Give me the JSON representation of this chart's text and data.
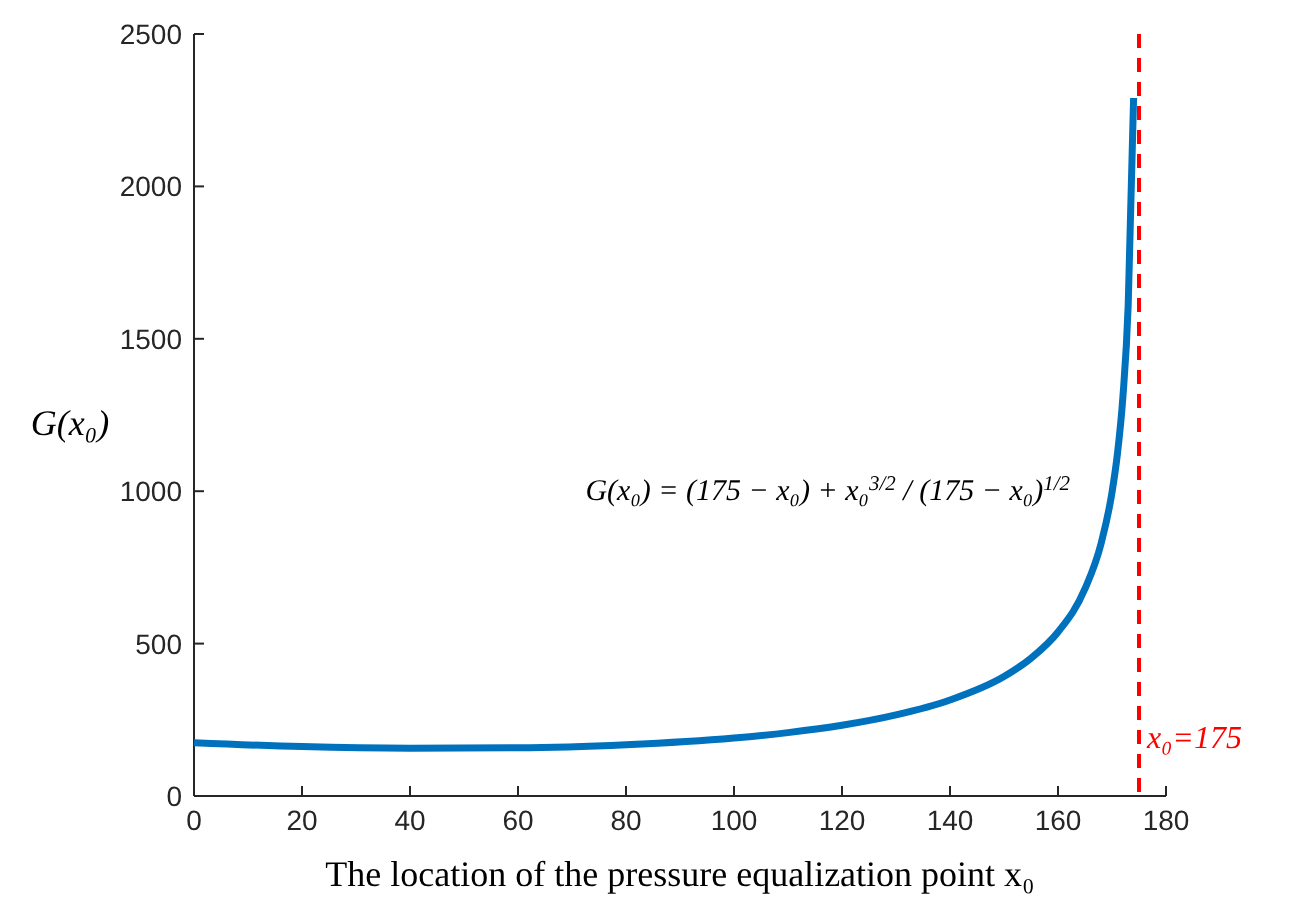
{
  "chart_data": {
    "type": "line",
    "xlabel": "The location of the pressure equalization point x₀",
    "ylabel": "G(x₀)",
    "x": [
      0,
      20,
      40,
      60,
      80,
      100,
      110,
      120,
      130,
      140,
      150,
      155,
      160,
      165,
      168,
      170,
      171,
      172,
      173,
      174
    ],
    "series": [
      {
        "color": "#0072bd",
        "values": [
          175,
          162,
          157,
          158,
          168,
          190,
          208,
          232,
          266,
          315,
          392,
          452,
          538,
          680,
          830,
          996,
          1122,
          1305,
          1611,
          2290
        ]
      }
    ],
    "xlim": [
      0,
      180
    ],
    "xticks": [
      0,
      20,
      40,
      60,
      80,
      100,
      120,
      140,
      160,
      180
    ],
    "ylim": [
      0,
      2500
    ],
    "yticks": [
      0,
      500,
      1000,
      1500,
      2000,
      2500
    ],
    "grid": false,
    "marker": "none",
    "line_style": "solid",
    "ref_lines": [
      {
        "axis": "x",
        "value": 175,
        "label": "x₀=175",
        "color": "#ff0000",
        "line_style": "dashed"
      }
    ],
    "annotations": [
      "G(x₀) = (175 − x₀) + x₀$^{3/2}$ / (175 − x₀)$^{1/2}$"
    ]
  }
}
